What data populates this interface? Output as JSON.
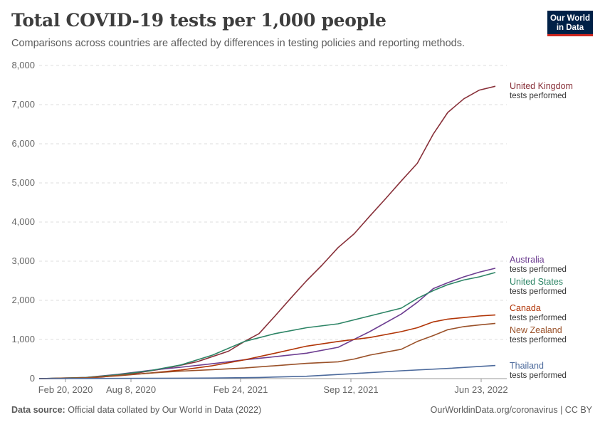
{
  "header": {
    "title": "Total COVID-19 tests per 1,000 people",
    "subtitle": "Comparisons across countries are affected by differences in testing policies and reporting methods."
  },
  "logo": {
    "line1": "Our World",
    "line2": "in Data"
  },
  "footer": {
    "source_label": "Data source:",
    "source_text": "Official data collated by Our World in Data (2022)",
    "right_text": "OurWorldinData.org/coronavirus | CC BY"
  },
  "chart_data": {
    "type": "line",
    "title": "Total COVID-19 tests per 1,000 people",
    "xlabel": "",
    "ylabel": "",
    "x_ticks": [
      "Feb 20, 2020",
      "Aug 8, 2020",
      "Feb 24, 2021",
      "Sep 12, 2021",
      "Jun 23, 2022"
    ],
    "y_ticks": [
      "0",
      "1,000",
      "2,000",
      "3,000",
      "4,000",
      "5,000",
      "6,000",
      "7,000",
      "8,000"
    ],
    "ylim": [
      0,
      8000
    ],
    "xlim": [
      "2020-01-01",
      "2022-06-23"
    ],
    "grid": "horizontal dashed",
    "legend": "inline labels at line ends",
    "series": [
      {
        "name": "United Kingdom",
        "label_suffix": "tests performed",
        "color": "#883039",
        "points": [
          [
            "2020-01-01",
            0
          ],
          [
            "2020-03-01",
            5
          ],
          [
            "2020-05-01",
            40
          ],
          [
            "2020-07-01",
            130
          ],
          [
            "2020-09-01",
            260
          ],
          [
            "2020-11-01",
            430
          ],
          [
            "2021-01-01",
            700
          ],
          [
            "2021-02-01",
            950
          ],
          [
            "2021-03-01",
            1150
          ],
          [
            "2021-04-01",
            1600
          ],
          [
            "2021-05-01",
            2050
          ],
          [
            "2021-06-01",
            2500
          ],
          [
            "2021-07-01",
            2900
          ],
          [
            "2021-08-01",
            3350
          ],
          [
            "2021-09-01",
            3700
          ],
          [
            "2021-10-01",
            4150
          ],
          [
            "2021-11-01",
            4600
          ],
          [
            "2021-12-01",
            5050
          ],
          [
            "2022-01-01",
            5500
          ],
          [
            "2022-02-01",
            6250
          ],
          [
            "2022-03-01",
            6800
          ],
          [
            "2022-04-01",
            7150
          ],
          [
            "2022-05-01",
            7370
          ],
          [
            "2022-06-01",
            7470
          ]
        ]
      },
      {
        "name": "Australia",
        "label_suffix": "tests performed",
        "color": "#6d3e91",
        "points": [
          [
            "2020-01-01",
            0
          ],
          [
            "2020-04-01",
            30
          ],
          [
            "2020-06-01",
            110
          ],
          [
            "2020-08-01",
            210
          ],
          [
            "2020-10-01",
            290
          ],
          [
            "2020-12-01",
            380
          ],
          [
            "2021-02-01",
            480
          ],
          [
            "2021-04-01",
            560
          ],
          [
            "2021-06-01",
            650
          ],
          [
            "2021-08-01",
            800
          ],
          [
            "2021-10-01",
            1200
          ],
          [
            "2021-12-01",
            1650
          ],
          [
            "2022-01-01",
            1950
          ],
          [
            "2022-02-01",
            2300
          ],
          [
            "2022-03-01",
            2450
          ],
          [
            "2022-04-01",
            2600
          ],
          [
            "2022-05-01",
            2720
          ],
          [
            "2022-06-01",
            2820
          ]
        ]
      },
      {
        "name": "United States",
        "label_suffix": "tests performed",
        "color": "#2c8465",
        "points": [
          [
            "2020-01-01",
            0
          ],
          [
            "2020-04-01",
            30
          ],
          [
            "2020-06-01",
            100
          ],
          [
            "2020-08-01",
            200
          ],
          [
            "2020-10-01",
            350
          ],
          [
            "2020-12-01",
            600
          ],
          [
            "2021-02-01",
            950
          ],
          [
            "2021-04-01",
            1150
          ],
          [
            "2021-06-01",
            1300
          ],
          [
            "2021-08-01",
            1400
          ],
          [
            "2021-10-01",
            1600
          ],
          [
            "2021-12-01",
            1800
          ],
          [
            "2022-01-01",
            2050
          ],
          [
            "2022-02-01",
            2250
          ],
          [
            "2022-03-01",
            2400
          ],
          [
            "2022-04-01",
            2520
          ],
          [
            "2022-05-01",
            2600
          ],
          [
            "2022-06-01",
            2710
          ]
        ]
      },
      {
        "name": "Canada",
        "label_suffix": "tests performed",
        "color": "#b13507",
        "points": [
          [
            "2020-01-01",
            0
          ],
          [
            "2020-04-01",
            20
          ],
          [
            "2020-06-01",
            70
          ],
          [
            "2020-08-01",
            140
          ],
          [
            "2020-10-01",
            220
          ],
          [
            "2020-12-01",
            330
          ],
          [
            "2021-02-01",
            480
          ],
          [
            "2021-04-01",
            650
          ],
          [
            "2021-06-01",
            830
          ],
          [
            "2021-08-01",
            950
          ],
          [
            "2021-10-01",
            1050
          ],
          [
            "2021-12-01",
            1200
          ],
          [
            "2022-01-01",
            1300
          ],
          [
            "2022-02-01",
            1450
          ],
          [
            "2022-03-01",
            1520
          ],
          [
            "2022-04-01",
            1560
          ],
          [
            "2022-05-01",
            1600
          ],
          [
            "2022-06-01",
            1625
          ]
        ]
      },
      {
        "name": "New Zealand",
        "label_suffix": "tests performed",
        "color": "#9a5129",
        "points": [
          [
            "2020-01-01",
            0
          ],
          [
            "2020-04-01",
            20
          ],
          [
            "2020-06-01",
            80
          ],
          [
            "2020-08-01",
            140
          ],
          [
            "2020-10-01",
            190
          ],
          [
            "2020-12-01",
            230
          ],
          [
            "2021-02-01",
            270
          ],
          [
            "2021-04-01",
            330
          ],
          [
            "2021-06-01",
            390
          ],
          [
            "2021-08-01",
            430
          ],
          [
            "2021-09-01",
            500
          ],
          [
            "2021-10-01",
            600
          ],
          [
            "2021-12-01",
            750
          ],
          [
            "2022-01-01",
            950
          ],
          [
            "2022-02-01",
            1100
          ],
          [
            "2022-03-01",
            1250
          ],
          [
            "2022-04-01",
            1330
          ],
          [
            "2022-05-01",
            1370
          ],
          [
            "2022-06-01",
            1410
          ]
        ]
      },
      {
        "name": "Thailand",
        "label_suffix": "tests performed",
        "color": "#4c6a9c",
        "points": [
          [
            "2020-01-01",
            0
          ],
          [
            "2020-06-01",
            5
          ],
          [
            "2020-12-01",
            15
          ],
          [
            "2021-03-01",
            30
          ],
          [
            "2021-06-01",
            60
          ],
          [
            "2021-09-01",
            130
          ],
          [
            "2021-12-01",
            200
          ],
          [
            "2022-03-01",
            260
          ],
          [
            "2022-06-01",
            335
          ]
        ]
      }
    ]
  }
}
